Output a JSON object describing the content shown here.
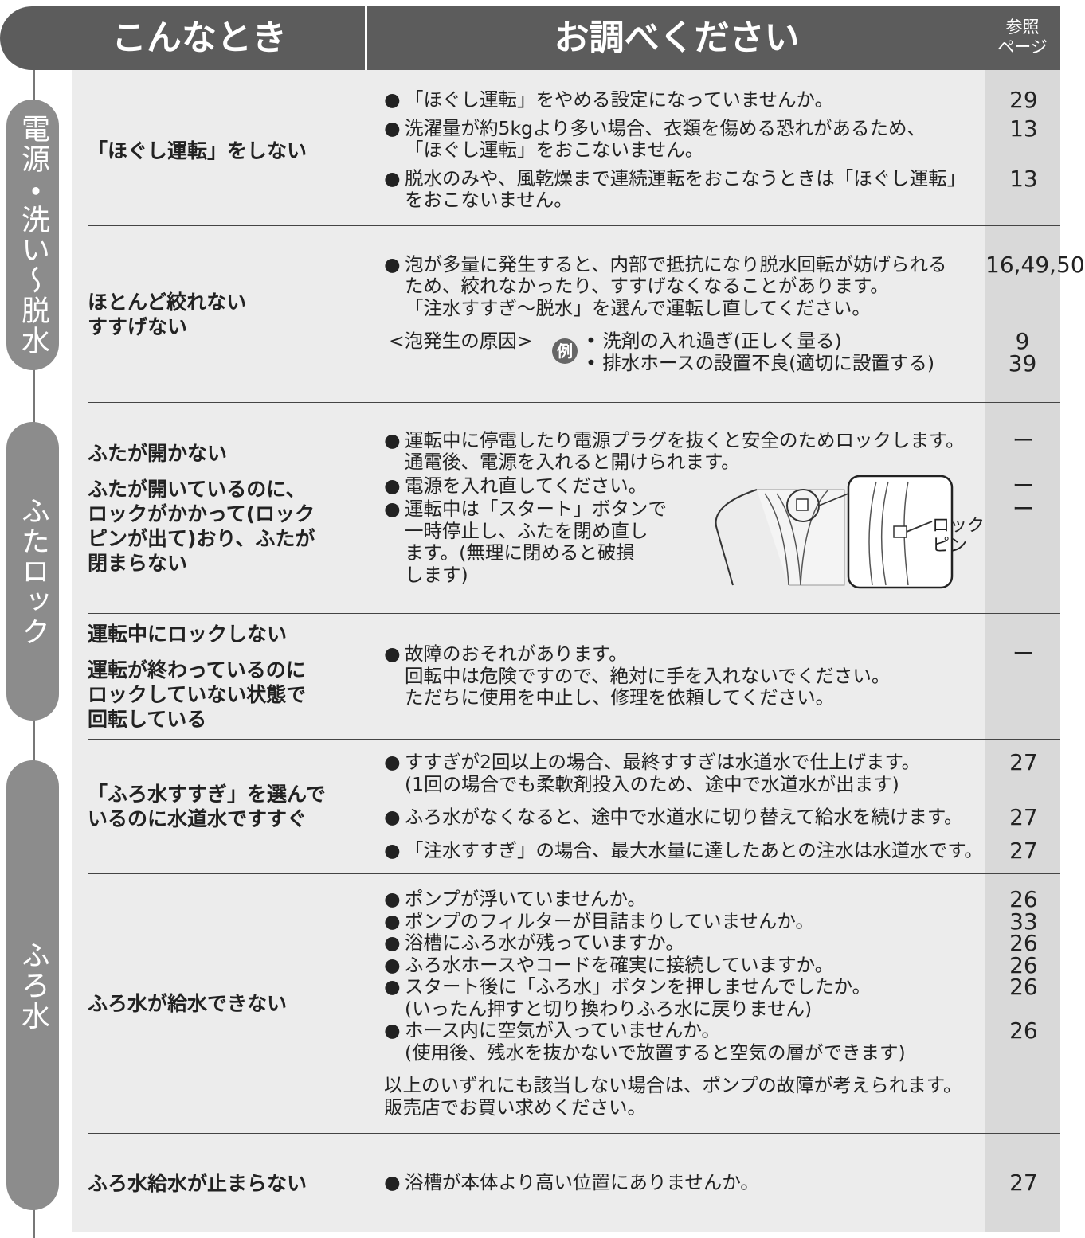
{
  "header": {
    "col1": "こんなとき",
    "col2": "お調べください",
    "col3": [
      "参照",
      "ページ"
    ]
  },
  "sections": [
    {
      "label": "電源・洗い〜脱水"
    },
    {
      "label": "ふたロック"
    },
    {
      "label": "ふろ水"
    }
  ],
  "rows": [
    {
      "symptoms": [
        "「ほぐし運転」をしない"
      ],
      "items": [
        {
          "text": "「ほぐし運転」をやめる設定になっていませんか。",
          "page": 29
        },
        {
          "text": "洗濯量が約5kgより多い場合、衣類を傷める恐れがあるため、\n「ほぐし運転」をおこないません。",
          "page": 13
        },
        {
          "text": "脱水のみや、風乾燥まで連続運転をおこなうときは「ほぐし運転」\nをおこないません。",
          "page": 13
        }
      ]
    },
    {
      "symptoms": [
        "ほとんど絞れない\nすすげない"
      ],
      "items": [
        {
          "text": "泡が多量に発生すると、内部で抵抗になり脱水回転が妨げられる\nため、絞れなかったり、すすげなくなることがあります。\n「注水すすぎ〜脱水」を選んで運転し直してください。",
          "page": "16,49,50"
        }
      ],
      "example": {
        "label": "<泡発生の原因>",
        "badge": "例",
        "lines": [
          {
            "text": "洗剤の入れ過ぎ(正しく量る)",
            "page": 9
          },
          {
            "text": "排水ホースの設置不良(適切に設置する)",
            "page": 39
          }
        ]
      }
    },
    {
      "symptoms": [
        "ふたが開かない",
        "ふたが開いているのに、\nロックがかかって(ロック\nピンが出て)おり、ふたが\n閉まらない"
      ],
      "items": [
        {
          "text": "運転中に停電したり電源プラグを抜くと安全のためロックします。\n通電後、電源を入れると開けられます。",
          "page": "ー"
        },
        {
          "text": "電源を入れ直してください。",
          "page": "ー"
        },
        {
          "text": "運転中は「スタート」ボタンで\n一時停止し、ふたを閉め直し\nます。(無理に閉めると破損\nします)",
          "page": "ー"
        }
      ],
      "figure_label": "ロック\nピン"
    },
    {
      "symptoms": [
        "運転中にロックしない",
        "運転が終わっているのに\nロックしていない状態で\n回転している"
      ],
      "items": [
        {
          "text": "故障のおそれがあります。\n回転中は危険ですので、絶対に手を入れないでください。\nただちに使用を中止し、修理を依頼してください。",
          "page": "ー"
        }
      ]
    },
    {
      "symptoms": [
        "「ふろ水すすぎ」を選んで\nいるのに水道水ですすぐ"
      ],
      "items": [
        {
          "text": "すすぎが2回以上の場合、最終すすぎは水道水で仕上げます。\n(1回の場合でも柔軟剤投入のため、途中で水道水が出ます)",
          "page": 27
        },
        {
          "text": "ふろ水がなくなると、途中で水道水に切り替えて給水を続けます。",
          "page": 27
        },
        {
          "text": "「注水すすぎ」の場合、最大水量に達したあとの注水は水道水です。",
          "page": 27
        }
      ]
    },
    {
      "symptoms": [
        "ふろ水が給水できない"
      ],
      "items": [
        {
          "text": "ポンプが浮いていませんか。",
          "page": 26
        },
        {
          "text": "ポンプのフィルターが目詰まりしていませんか。",
          "page": 33
        },
        {
          "text": "浴槽にふろ水が残っていますか。",
          "page": 26
        },
        {
          "text": "ふろ水ホースやコードを確実に接続していますか。",
          "page": 26
        },
        {
          "text": "スタート後に「ふろ水」ボタンを押しませんでしたか。\n(いったん押すと切り換わりふろ水に戻りません)",
          "page": 26
        },
        {
          "text": "ホース内に空気が入っていませんか。\n(使用後、残水を抜かないで放置すると空気の層ができます)",
          "page": 26
        }
      ],
      "note": "以上のいずれにも該当しない場合は、ポンプの故障が考えられます。\n販売店でお買い求めください。"
    },
    {
      "symptoms": [
        "ふろ水給水が止まらない"
      ],
      "items": [
        {
          "text": "浴槽が本体より高い位置にありませんか。",
          "page": 27
        }
      ]
    }
  ]
}
